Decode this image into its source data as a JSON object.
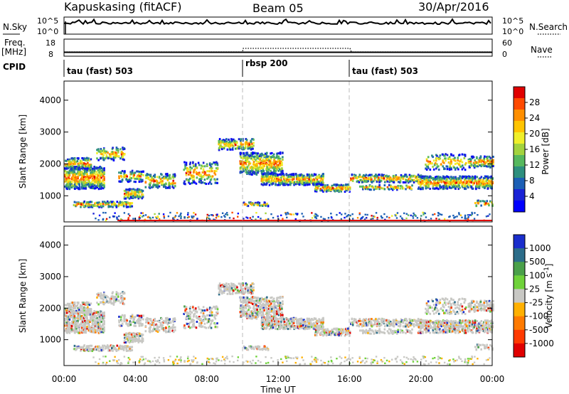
{
  "header": {
    "station": "Kapuskasing (fitACF)",
    "beam": "Beam 05",
    "date": "30/Apr/2016"
  },
  "status_panels": {
    "nsky_label": "N.Sky",
    "nsky_ticks": [
      "10^5",
      "10^0"
    ],
    "nsearch_label": "N.Search",
    "freq_label": "Freq.",
    "freq_unit": "[MHz]",
    "freq_ticks": [
      "18",
      "8"
    ],
    "nave_label": "Nave",
    "nave_ticks": [
      "60",
      "0"
    ],
    "cpid_label": "CPID",
    "cpid_segments": [
      {
        "label": "tau (fast) 503",
        "start_hour": 0
      },
      {
        "label": "rbsp 200",
        "start_hour": 10
      },
      {
        "label": "tau (fast) 503",
        "start_hour": 16
      }
    ]
  },
  "chart_data": [
    {
      "type": "heatmap",
      "name": "power",
      "ylabel": "Slant Range [km]",
      "ylim": [
        180,
        4600
      ],
      "yticks": [
        1000,
        2000,
        3000,
        4000
      ],
      "xlim": [
        0,
        24
      ],
      "colorbar": {
        "label": "Power [dB]",
        "ticks": [
          "28",
          "24",
          "20",
          "16",
          "12",
          "8",
          "4"
        ],
        "colors": [
          "#e00000",
          "#ff4a00",
          "#ff8f00",
          "#ffc400",
          "#f0ef2a",
          "#a3d33e",
          "#56b85e",
          "#2e8f7e",
          "#1c5fb5",
          "#1a23d6",
          "#0000ff"
        ]
      }
    },
    {
      "type": "heatmap",
      "name": "velocity",
      "xlabel": "Time UT",
      "ylabel": "Slant Range [km]",
      "ylim": [
        180,
        4600
      ],
      "yticks": [
        1000,
        2000,
        3000,
        4000
      ],
      "xlim": [
        0,
        24
      ],
      "xticks": [
        "00:00",
        "04:00",
        "08:00",
        "12:00",
        "16:00",
        "20:00",
        "00:00"
      ],
      "colorbar": {
        "label": "Velocity [m s",
        "label_sup": "-1",
        "label_close": "]",
        "ticks": [
          "1000",
          "500",
          "100",
          "25",
          "-25",
          "-100",
          "-500",
          "-1000"
        ],
        "colors": [
          "#1a2ecc",
          "#2c6d8a",
          "#4aa04a",
          "#6fd23a",
          "#c8c8c4",
          "#ffb000",
          "#ff7a00",
          "#ff3a00",
          "#e00000"
        ]
      }
    }
  ],
  "mode_change_hours": [
    10,
    16
  ]
}
